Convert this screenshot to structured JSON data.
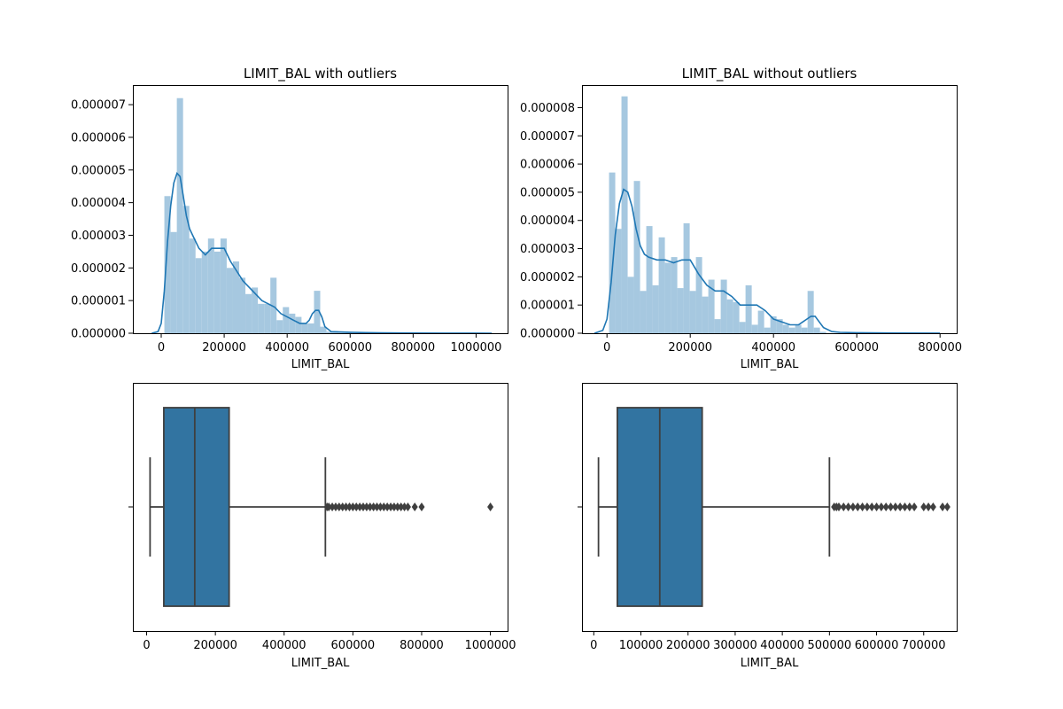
{
  "colors": {
    "hist": "#a6c8e0",
    "kde": "#1f77b4",
    "box": "#3274a1",
    "box_edge": "#3f3f3f"
  },
  "chart_data": [
    {
      "type": "histogram",
      "title": "LIMIT_BAL with outliers",
      "xlabel": "LIMIT_BAL",
      "ylabel": "",
      "xlim": [
        -90000,
        1100000
      ],
      "ylim": [
        0,
        7.6e-06
      ],
      "xticks": [
        0,
        200000,
        400000,
        600000,
        800000,
        1000000
      ],
      "xtick_labels": [
        "0",
        "200000",
        "400000",
        "600000",
        "800000",
        "1000000"
      ],
      "yticks": [
        0,
        1e-06,
        2e-06,
        3e-06,
        4e-06,
        5e-06,
        6e-06,
        7e-06
      ],
      "ytick_labels": [
        "0.000000",
        "0.000001",
        "0.000002",
        "0.000003",
        "0.000004",
        "0.000005",
        "0.000006",
        "0.000007"
      ],
      "bin_width": 19800,
      "bins": [
        {
          "x0": 10000,
          "density": 4.2e-06
        },
        {
          "x0": 29800,
          "density": 3.1e-06
        },
        {
          "x0": 49600,
          "density": 7.2e-06
        },
        {
          "x0": 69400,
          "density": 3.9e-06
        },
        {
          "x0": 89200,
          "density": 2.9e-06
        },
        {
          "x0": 109000,
          "density": 2.3e-06
        },
        {
          "x0": 128800,
          "density": 2.5e-06
        },
        {
          "x0": 148600,
          "density": 2.9e-06
        },
        {
          "x0": 168400,
          "density": 2.5e-06
        },
        {
          "x0": 188200,
          "density": 2.9e-06
        },
        {
          "x0": 208000,
          "density": 2e-06
        },
        {
          "x0": 227800,
          "density": 2.2e-06
        },
        {
          "x0": 247600,
          "density": 1.7e-06
        },
        {
          "x0": 267400,
          "density": 1.2e-06
        },
        {
          "x0": 287200,
          "density": 1.4e-06
        },
        {
          "x0": 307000,
          "density": 9e-07
        },
        {
          "x0": 326800,
          "density": 9e-07
        },
        {
          "x0": 346600,
          "density": 1.7e-06
        },
        {
          "x0": 366400,
          "density": 4e-07
        },
        {
          "x0": 386200,
          "density": 8e-07
        },
        {
          "x0": 406000,
          "density": 6e-07
        },
        {
          "x0": 425800,
          "density": 5e-07
        },
        {
          "x0": 445600,
          "density": 3e-07
        },
        {
          "x0": 465400,
          "density": 3e-07
        },
        {
          "x0": 485200,
          "density": 1.3e-06
        },
        {
          "x0": 505000,
          "density": 2e-07
        },
        {
          "x0": 524800,
          "density": 5e-08
        },
        {
          "x0": 544600,
          "density": 5e-08
        },
        {
          "x0": 564400,
          "density": 3e-08
        },
        {
          "x0": 584200,
          "density": 3e-08
        }
      ],
      "kde": {
        "x": [
          -30000,
          -10000,
          0,
          10000,
          20000,
          30000,
          40000,
          50000,
          60000,
          70000,
          80000,
          90000,
          100000,
          120000,
          140000,
          160000,
          180000,
          200000,
          220000,
          240000,
          260000,
          280000,
          300000,
          320000,
          340000,
          360000,
          380000,
          400000,
          420000,
          440000,
          460000,
          470000,
          480000,
          490000,
          500000,
          510000,
          520000,
          540000,
          570000,
          600000,
          650000,
          700000,
          800000,
          900000,
          1000000,
          1050000
        ],
        "y": [
          0,
          5e-08,
          3e-07,
          1.3e-06,
          2.8e-06,
          3.9e-06,
          4.6e-06,
          4.9e-06,
          4.8e-06,
          4.2e-06,
          3.6e-06,
          3.2e-06,
          3e-06,
          2.6e-06,
          2.4e-06,
          2.6e-06,
          2.6e-06,
          2.6e-06,
          2.2e-06,
          1.9e-06,
          1.6e-06,
          1.4e-06,
          1.2e-06,
          1e-06,
          9e-07,
          8e-07,
          6e-07,
          5e-07,
          4e-07,
          3e-07,
          3e-07,
          4e-07,
          6e-07,
          7e-07,
          7e-07,
          5e-07,
          2e-07,
          5e-08,
          4e-08,
          3e-08,
          2e-08,
          1e-08,
          5e-09,
          3e-09,
          2e-09,
          1e-09
        ]
      }
    },
    {
      "type": "histogram",
      "title": "LIMIT_BAL without outliers",
      "xlabel": "LIMIT_BAL",
      "ylabel": "",
      "xlim": [
        -60000,
        840000
      ],
      "ylim": [
        0,
        8.8e-06
      ],
      "xticks": [
        0,
        200000,
        400000,
        600000,
        800000
      ],
      "xtick_labels": [
        "0",
        "200000",
        "400000",
        "600000",
        "800000"
      ],
      "yticks": [
        0,
        1e-06,
        2e-06,
        3e-06,
        4e-06,
        5e-06,
        6e-06,
        7e-06,
        8e-06
      ],
      "ytick_labels": [
        "0.000000",
        "0.000001",
        "0.000002",
        "0.000003",
        "0.000004",
        "0.000005",
        "0.000006",
        "0.000007",
        "0.000008"
      ],
      "bin_width": 14900,
      "bins": [
        {
          "x0": 5000,
          "density": 5.7e-06
        },
        {
          "x0": 19900,
          "density": 3.7e-06
        },
        {
          "x0": 34800,
          "density": 8.4e-06
        },
        {
          "x0": 49700,
          "density": 2e-06
        },
        {
          "x0": 64600,
          "density": 5.4e-06
        },
        {
          "x0": 79500,
          "density": 1.5e-06
        },
        {
          "x0": 94400,
          "density": 3.8e-06
        },
        {
          "x0": 109300,
          "density": 1.7e-06
        },
        {
          "x0": 124200,
          "density": 3.4e-06
        },
        {
          "x0": 139100,
          "density": 2.5e-06
        },
        {
          "x0": 154000,
          "density": 2.7e-06
        },
        {
          "x0": 168900,
          "density": 1.6e-06
        },
        {
          "x0": 183800,
          "density": 3.9e-06
        },
        {
          "x0": 198700,
          "density": 1.5e-06
        },
        {
          "x0": 213600,
          "density": 2.7e-06
        },
        {
          "x0": 228500,
          "density": 1.3e-06
        },
        {
          "x0": 243400,
          "density": 1.9e-06
        },
        {
          "x0": 258300,
          "density": 5e-07
        },
        {
          "x0": 273200,
          "density": 1.9e-06
        },
        {
          "x0": 288100,
          "density": 1.2e-06
        },
        {
          "x0": 303000,
          "density": 1.1e-06
        },
        {
          "x0": 317900,
          "density": 4e-07
        },
        {
          "x0": 332800,
          "density": 1.7e-06
        },
        {
          "x0": 347700,
          "density": 3e-07
        },
        {
          "x0": 362600,
          "density": 8e-07
        },
        {
          "x0": 377500,
          "density": 2e-07
        },
        {
          "x0": 392400,
          "density": 6e-07
        },
        {
          "x0": 407300,
          "density": 5e-07
        },
        {
          "x0": 422200,
          "density": 3e-07
        },
        {
          "x0": 437100,
          "density": 2e-07
        },
        {
          "x0": 452000,
          "density": 3e-07
        },
        {
          "x0": 466900,
          "density": 2e-07
        },
        {
          "x0": 481800,
          "density": 1.5e-06
        },
        {
          "x0": 496700,
          "density": 2e-07
        },
        {
          "x0": 511600,
          "density": 5e-08
        }
      ],
      "kde": {
        "x": [
          -30000,
          -10000,
          0,
          10000,
          20000,
          30000,
          40000,
          50000,
          60000,
          70000,
          80000,
          90000,
          100000,
          120000,
          140000,
          160000,
          180000,
          200000,
          220000,
          240000,
          260000,
          280000,
          300000,
          320000,
          340000,
          360000,
          380000,
          400000,
          420000,
          440000,
          460000,
          470000,
          480000,
          490000,
          500000,
          510000,
          520000,
          540000,
          560000,
          600000,
          700000,
          800000
        ],
        "y": [
          0,
          1e-07,
          5e-07,
          1.8e-06,
          3.5e-06,
          4.6e-06,
          5.1e-06,
          5e-06,
          4.5e-06,
          3.7e-06,
          3.1e-06,
          2.8e-06,
          2.7e-06,
          2.6e-06,
          2.6e-06,
          2.5e-06,
          2.6e-06,
          2.6e-06,
          2.1e-06,
          1.7e-06,
          1.5e-06,
          1.5e-06,
          1.3e-06,
          1e-06,
          1e-06,
          1e-06,
          8e-07,
          5e-07,
          4e-07,
          3e-07,
          3e-07,
          4e-07,
          5e-07,
          6e-07,
          6e-07,
          4e-07,
          2e-07,
          6e-08,
          3e-08,
          2e-08,
          5e-09,
          2e-09
        ]
      }
    },
    {
      "type": "boxplot",
      "title": "",
      "xlabel": "LIMIT_BAL",
      "ylabel": "",
      "xlim": [
        -40000,
        1050000
      ],
      "xticks": [
        0,
        200000,
        400000,
        600000,
        800000,
        1000000
      ],
      "xtick_labels": [
        "0",
        "200000",
        "400000",
        "600000",
        "800000",
        "1000000"
      ],
      "box": {
        "whisker_low": 10000,
        "q1": 50000,
        "median": 140000,
        "q3": 240000,
        "whisker_high": 520000
      },
      "outliers": [
        525000,
        530000,
        540000,
        550000,
        560000,
        570000,
        580000,
        590000,
        600000,
        610000,
        620000,
        630000,
        640000,
        650000,
        660000,
        670000,
        680000,
        690000,
        700000,
        710000,
        720000,
        730000,
        740000,
        750000,
        760000,
        780000,
        800000,
        1000000
      ]
    },
    {
      "type": "boxplot",
      "title": "",
      "xlabel": "LIMIT_BAL",
      "ylabel": "",
      "xlim": [
        -25000,
        770000
      ],
      "xticks": [
        0,
        100000,
        200000,
        300000,
        400000,
        500000,
        600000,
        700000
      ],
      "xtick_labels": [
        "0",
        "100000",
        "200000",
        "300000",
        "400000",
        "500000",
        "600000",
        "700000"
      ],
      "box": {
        "whisker_low": 10000,
        "q1": 50000,
        "median": 140000,
        "q3": 230000,
        "whisker_high": 500000
      },
      "outliers": [
        510000,
        515000,
        520000,
        530000,
        540000,
        550000,
        560000,
        570000,
        580000,
        590000,
        600000,
        610000,
        620000,
        630000,
        640000,
        650000,
        660000,
        670000,
        680000,
        700000,
        710000,
        720000,
        740000,
        750000
      ]
    }
  ]
}
